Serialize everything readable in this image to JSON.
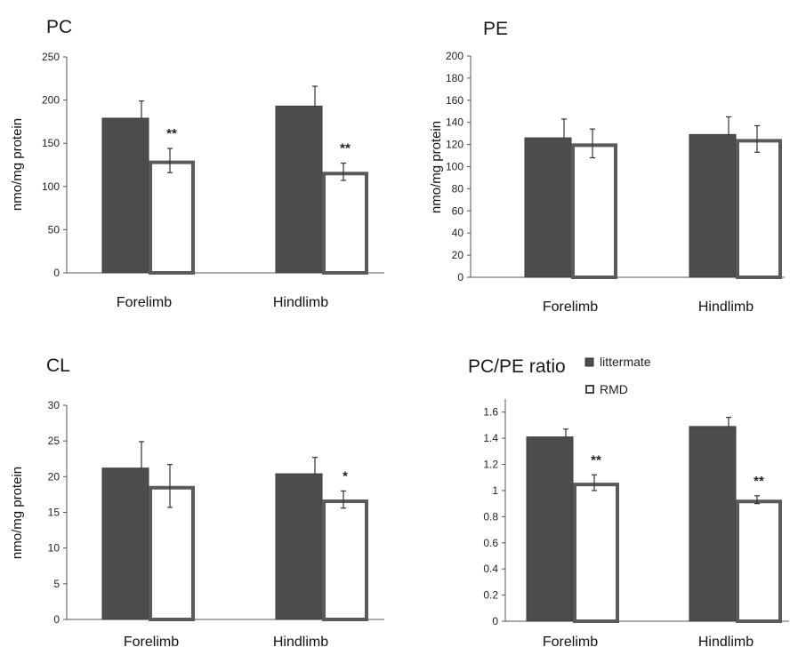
{
  "chart_data": [
    {
      "type": "bar",
      "title": "PC",
      "ylabel": "nmo/mg protein",
      "categories": [
        "Forelimb",
        "Hindlimb"
      ],
      "ylim": [
        0,
        250
      ],
      "yticks": [
        0,
        50,
        100,
        150,
        200,
        250
      ],
      "series": [
        {
          "name": "littermate",
          "values": [
            179,
            193
          ],
          "errors": [
            20,
            23
          ]
        },
        {
          "name": "RMD",
          "values": [
            130,
            117
          ],
          "errors": [
            14,
            10
          ]
        }
      ],
      "annotations": [
        "",
        "**",
        "",
        "**"
      ]
    },
    {
      "type": "bar",
      "title": "PE",
      "ylabel": "nmo/mg protein",
      "categories": [
        "Forelimb",
        "Hindlimb"
      ],
      "ylim": [
        0,
        200
      ],
      "yticks": [
        0,
        20,
        40,
        60,
        80,
        100,
        120,
        140,
        160,
        180,
        200
      ],
      "series": [
        {
          "name": "littermate",
          "values": [
            126,
            129
          ],
          "errors": [
            17,
            16
          ]
        },
        {
          "name": "RMD",
          "values": [
            121,
            125
          ],
          "errors": [
            13,
            12
          ]
        }
      ],
      "annotations": [
        "",
        "",
        "",
        ""
      ]
    },
    {
      "type": "bar",
      "title": "CL",
      "ylabel": "nmo/mg protein",
      "categories": [
        "Forelimb",
        "Hindlimb"
      ],
      "ylim": [
        0,
        30
      ],
      "yticks": [
        0,
        5,
        10,
        15,
        20,
        25,
        30
      ],
      "series": [
        {
          "name": "littermate",
          "values": [
            21.2,
            20.4
          ],
          "errors": [
            3.7,
            2.3
          ]
        },
        {
          "name": "RMD",
          "values": [
            18.7,
            16.8
          ],
          "errors": [
            3.0,
            1.2
          ]
        }
      ],
      "annotations": [
        "",
        "",
        "",
        "*"
      ]
    },
    {
      "type": "bar",
      "title": "PC/PE ratio",
      "ylabel": "",
      "categories": [
        "Forelimb",
        "Hindlimb"
      ],
      "ylim": [
        0,
        1.7
      ],
      "yticks": [
        0,
        0.2,
        0.4,
        0.6,
        0.8,
        1,
        1.2,
        1.4,
        1.6
      ],
      "series": [
        {
          "name": "littermate",
          "values": [
            1.41,
            1.49
          ],
          "errors": [
            0.06,
            0.07
          ]
        },
        {
          "name": "RMD",
          "values": [
            1.06,
            0.93
          ],
          "errors": [
            0.06,
            0.03
          ]
        }
      ],
      "annotations": [
        "",
        "**",
        "",
        "**"
      ]
    }
  ],
  "legend": {
    "items": [
      {
        "label": "littermate",
        "style": "filled"
      },
      {
        "label": "RMD",
        "style": "open"
      }
    ],
    "placement": "top-right of PC/PE ratio panel"
  },
  "colors": {
    "filled_bar": "#4d4d4d",
    "open_bar_stroke": "#5a5a5a",
    "open_bar_fill": "#ffffff"
  }
}
